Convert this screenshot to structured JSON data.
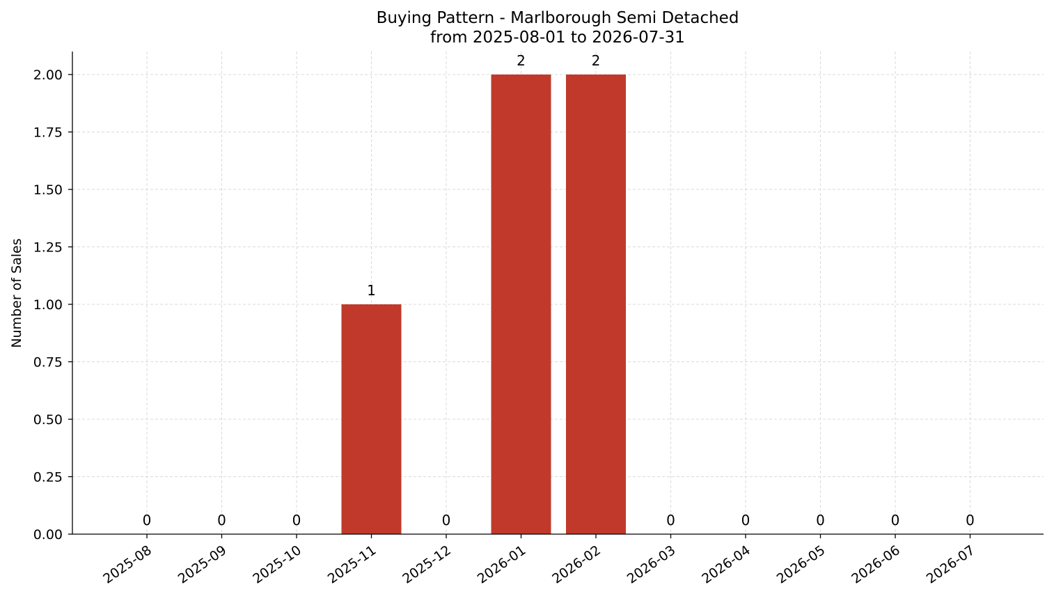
{
  "chart_data": {
    "type": "bar",
    "title": "Buying Pattern - Marlborough Semi Detached",
    "subtitle": "from 2025-08-01 to 2026-07-31",
    "xlabel": "",
    "ylabel": "Number of Sales",
    "categories": [
      "2025-08",
      "2025-09",
      "2025-10",
      "2025-11",
      "2025-12",
      "2026-01",
      "2026-02",
      "2026-03",
      "2026-04",
      "2026-05",
      "2026-06",
      "2026-07"
    ],
    "values": [
      0,
      0,
      0,
      1,
      0,
      2,
      2,
      0,
      0,
      0,
      0,
      0
    ],
    "data_labels": [
      "0",
      "0",
      "0",
      "1",
      "0",
      "2",
      "2",
      "0",
      "0",
      "0",
      "0",
      "0"
    ],
    "ylim": [
      0,
      2.1
    ],
    "yticks": [
      0,
      0.25,
      0.5,
      0.75,
      1.0,
      1.25,
      1.5,
      1.75,
      2.0
    ],
    "ytick_labels": [
      "0.00",
      "0.25",
      "0.50",
      "0.75",
      "1.00",
      "1.25",
      "1.50",
      "1.75",
      "2.00"
    ],
    "grid": true,
    "bar_color": "#c0392b"
  }
}
